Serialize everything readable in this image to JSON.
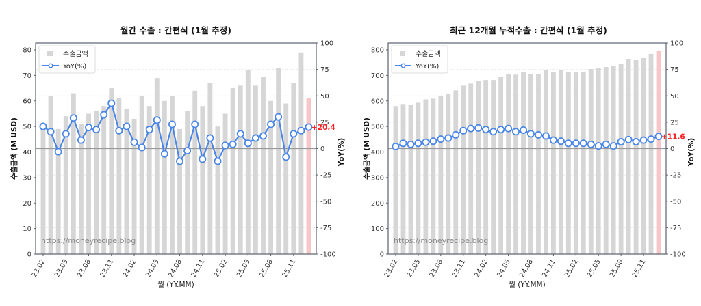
{
  "chart_data": [
    {
      "type": "bar",
      "title": "월간 수출 : 간편식 (1월 추정)",
      "xlabel": "월 (YY.MM)",
      "ylabel": "수출금액 (M USD)",
      "y2label": "YoY(%)",
      "ylim": [
        0,
        80
      ],
      "y_ticks": [
        0,
        10,
        20,
        30,
        40,
        50,
        60,
        70,
        80
      ],
      "y2lim": [
        -100,
        100
      ],
      "y2_ticks": [
        -100,
        -75,
        -50,
        -25,
        0,
        25,
        50,
        75,
        100
      ],
      "legend": [
        "수출금액",
        "YoY(%)"
      ],
      "legend_position": "upper left",
      "watermark": "https://moneyrecipe.blog",
      "last_label": "+20.4",
      "x_tick_labels": [
        "23.02",
        "23.05",
        "23.08",
        "23.11",
        "24.02",
        "24.05",
        "24.08",
        "24.11",
        "25.02",
        "25.05",
        "25.08",
        "25.11"
      ],
      "categories": [
        "23.02",
        "23.03",
        "23.04",
        "23.05",
        "23.06",
        "23.07",
        "23.08",
        "23.09",
        "23.10",
        "23.11",
        "23.12",
        "24.01",
        "24.02",
        "24.03",
        "24.04",
        "24.05",
        "24.06",
        "24.07",
        "24.08",
        "24.09",
        "24.10",
        "24.11",
        "24.12",
        "25.01",
        "25.02",
        "25.03",
        "25.04",
        "25.05",
        "25.06",
        "25.07",
        "25.08",
        "25.09",
        "25.10",
        "25.11",
        "25.12",
        "26.01"
      ],
      "series": [
        {
          "name": "수출금액",
          "type": "bar",
          "axis": "left",
          "values": [
            50,
            62,
            49,
            54,
            63,
            51,
            55,
            56,
            58,
            65,
            61,
            57,
            53,
            62,
            58,
            69,
            60,
            62,
            49,
            56,
            64,
            58,
            67,
            50,
            55,
            65,
            66,
            72,
            66,
            69.5,
            60,
            73,
            59,
            67,
            79,
            61
          ],
          "highlight_last": true
        },
        {
          "name": "YoY(%)",
          "type": "line",
          "axis": "right",
          "values": [
            21,
            16,
            -3,
            14,
            29,
            8,
            20,
            18,
            32,
            43,
            17,
            21,
            6,
            1,
            18,
            27,
            -5,
            23,
            -12,
            -2,
            23,
            -10,
            10,
            -12,
            3,
            4,
            14,
            5,
            10,
            12,
            23,
            30,
            -8,
            14,
            17,
            20.4
          ]
        }
      ],
      "hline_y2": 0,
      "grid": "horizontal dashed"
    },
    {
      "type": "bar",
      "title": "최근 12개월 누적수출 : 간편식 (1월 추정)",
      "xlabel": "월 (YY.MM)",
      "ylabel": "수출금액 (M USD)",
      "y2label": "YoY(%)",
      "ylim": [
        0,
        800
      ],
      "y_ticks": [
        0,
        100,
        200,
        300,
        400,
        500,
        600,
        700,
        800
      ],
      "y2lim": [
        -100,
        100
      ],
      "y2_ticks": [
        -100,
        -75,
        -50,
        -25,
        0,
        25,
        50,
        75,
        100
      ],
      "legend": [
        "수출금액",
        "YoY(%)"
      ],
      "legend_position": "upper left",
      "watermark": "https://moneyrecipe.blog",
      "last_label": "+11.6",
      "x_tick_labels": [
        "23.02",
        "23.05",
        "23.08",
        "23.11",
        "24.02",
        "24.05",
        "24.08",
        "24.11",
        "25.02",
        "25.05",
        "25.08",
        "25.11"
      ],
      "categories": [
        "23.02",
        "23.03",
        "23.04",
        "23.05",
        "23.06",
        "23.07",
        "23.08",
        "23.09",
        "23.10",
        "23.11",
        "23.12",
        "24.01",
        "24.02",
        "24.03",
        "24.04",
        "24.05",
        "24.06",
        "24.07",
        "24.08",
        "24.09",
        "24.10",
        "24.11",
        "24.12",
        "25.01",
        "25.02",
        "25.03",
        "25.04",
        "25.05",
        "25.06",
        "25.07",
        "25.08",
        "25.09",
        "25.10",
        "25.11",
        "25.12",
        "26.01"
      ],
      "series": [
        {
          "name": "수출금액",
          "type": "bar",
          "axis": "left",
          "values": [
            580,
            588,
            585,
            593,
            606,
            609,
            620,
            628,
            641,
            660,
            668,
            679,
            682,
            682,
            693,
            706,
            703,
            714,
            706,
            706,
            720,
            714,
            720,
            712,
            714,
            714,
            725,
            728,
            733,
            736,
            744,
            765,
            760,
            768,
            784,
            795
          ],
          "highlight_last": true
        },
        {
          "name": "YoY(%)",
          "type": "line",
          "axis": "right",
          "values": [
            2,
            5,
            4,
            5,
            6,
            7,
            9,
            10,
            13,
            17,
            19,
            19.5,
            18,
            16,
            18,
            19,
            16,
            17.5,
            14,
            13,
            12,
            8,
            7,
            5,
            5,
            5,
            4,
            2.5,
            4,
            2.5,
            6.5,
            8.5,
            6.5,
            8,
            9,
            11.6
          ]
        }
      ],
      "hline_y2": 0,
      "grid": "horizontal dashed"
    }
  ],
  "colors": {
    "bar": "#d6d6d6",
    "bar_highlight": "#f7c6c9",
    "line": "#4a86e8",
    "marker_fill": "#ffffff",
    "zero_line": "#9a9a9a",
    "last_label": "#ff2020",
    "axis": "#5a6270"
  }
}
